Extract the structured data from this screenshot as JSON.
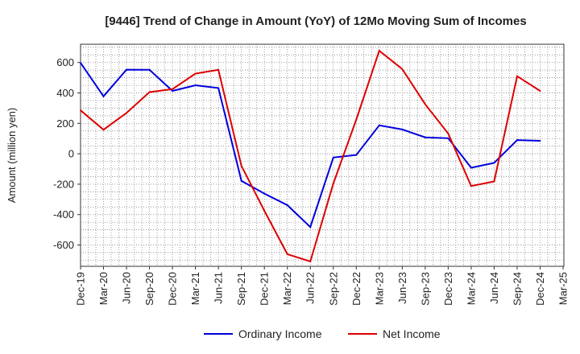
{
  "chart_data": {
    "type": "line",
    "title": "[9446]  Trend of Change in Amount (YoY) of 12Mo Moving Sum of Incomes",
    "xlabel": "",
    "ylabel": "Amount (million yen)",
    "ylim": [
      -740,
      720
    ],
    "yticks": [
      600,
      400,
      200,
      0,
      -200,
      -400,
      -600
    ],
    "grid": true,
    "legend_position": "bottom-center",
    "categories": [
      "Dec-19",
      "Mar-20",
      "Jun-20",
      "Sep-20",
      "Dec-20",
      "Mar-21",
      "Jun-21",
      "Sep-21",
      "Dec-21",
      "Mar-22",
      "Jun-22",
      "Sep-22",
      "Dec-22",
      "Mar-23",
      "Jun-23",
      "Sep-23",
      "Dec-23",
      "Mar-24",
      "Jun-24",
      "Sep-24",
      "Dec-24",
      "Mar-25"
    ],
    "series": [
      {
        "name": "Ordinary Income",
        "color": "#0000dd",
        "values": [
          598,
          378,
          553,
          552,
          413,
          450,
          432,
          -178,
          -262,
          -338,
          -482,
          -25,
          -8,
          187,
          160,
          108,
          102,
          -92,
          -60,
          90,
          85,
          null
        ]
      },
      {
        "name": "Net Income",
        "color": "#dd0000",
        "values": [
          285,
          158,
          268,
          405,
          425,
          527,
          552,
          -80,
          -375,
          -660,
          -708,
          -195,
          225,
          677,
          557,
          325,
          133,
          -212,
          -182,
          510,
          413,
          null
        ]
      }
    ]
  }
}
